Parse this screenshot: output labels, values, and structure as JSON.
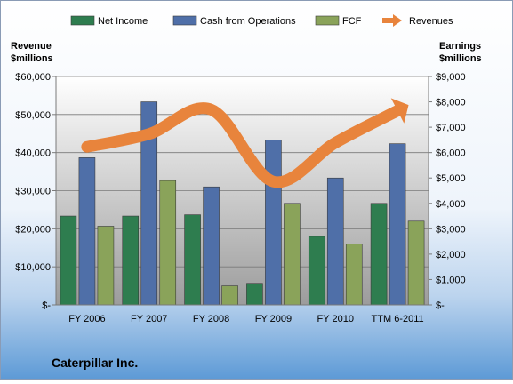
{
  "chart_data": {
    "type": "bar",
    "title": "Caterpillar Inc.",
    "categories": [
      "FY 2006",
      "FY 2007",
      "FY 2008",
      "FY 2009",
      "FY 2010",
      "TTM 6-2011"
    ],
    "series": [
      {
        "name": "Net Income",
        "axis": "right",
        "type": "bar",
        "color": "#2e7d4f",
        "values": [
          3500,
          3500,
          3550,
          850,
          2700,
          4000
        ]
      },
      {
        "name": "Cash from Operations",
        "axis": "right",
        "type": "bar",
        "color": "#4f6fa8",
        "values": [
          5800,
          8000,
          4650,
          6500,
          5000,
          6350
        ]
      },
      {
        "name": "FCF",
        "axis": "right",
        "type": "bar",
        "color": "#8aa35a",
        "values": [
          3100,
          4900,
          750,
          4000,
          2400,
          3300
        ]
      },
      {
        "name": "Revenues",
        "axis": "left",
        "type": "line",
        "color": "#e8843c",
        "values": [
          41500,
          44900,
          51300,
          32400,
          42600,
          51000
        ]
      }
    ],
    "left_axis": {
      "label_line1": "Revenue",
      "label_line2": "$millions",
      "min": 0,
      "max": 60000,
      "ticks": [
        0,
        10000,
        20000,
        30000,
        40000,
        50000,
        60000
      ],
      "tick_labels": [
        "$-",
        "$10,000",
        "$20,000",
        "$30,000",
        "$40,000",
        "$50,000",
        "$60,000"
      ]
    },
    "right_axis": {
      "label_line1": "Earnings",
      "label_line2": "$millions",
      "min": 0,
      "max": 9000,
      "ticks": [
        0,
        1000,
        2000,
        3000,
        4000,
        5000,
        6000,
        7000,
        8000,
        9000
      ],
      "tick_labels": [
        "$-",
        "$1,000",
        "$2,000",
        "$3,000",
        "$4,000",
        "$5,000",
        "$6,000",
        "$7,000",
        "$8,000",
        "$9,000"
      ]
    },
    "grid": true,
    "legend_position": "top"
  }
}
